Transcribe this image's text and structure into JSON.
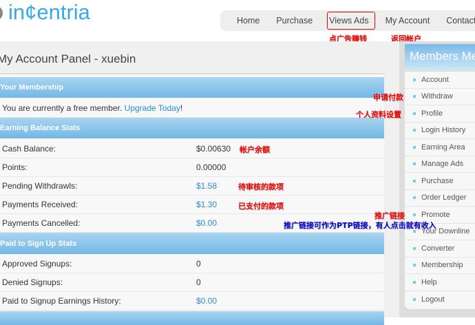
{
  "logo": {
    "text": "in¢entria"
  },
  "nav": {
    "items": [
      "Home",
      "Purchase",
      "Views Ads",
      "My Account",
      "Contact"
    ]
  },
  "annotations": {
    "views_ads": "点广告赚钱",
    "my_account": "返回帐户",
    "withdraw": "申请付款",
    "profile": "个人资料设置",
    "cash": "帐户余额",
    "pending": "待审核的款项",
    "received": "已支付的款项",
    "promote": "推广链接",
    "promote_note": "推广链接可作为PTP链接，有人点击就有收入"
  },
  "page_title": "My Account Panel - xuebin",
  "membership": {
    "header": "Your Membership",
    "text": "You are currently a free member.",
    "upgrade": "Upgrade Today",
    "suffix": "!"
  },
  "earning": {
    "header": "Earning Balance Stats",
    "rows": [
      {
        "label": "Cash Balance:",
        "value": "$0.00630"
      },
      {
        "label": "Points:",
        "value": "0.00000"
      },
      {
        "label": "Pending Withdrawls:",
        "value": "$1.58"
      },
      {
        "label": "Payments Received:",
        "value": "$1.30"
      },
      {
        "label": "Payments Cancelled:",
        "value": "$0.00"
      }
    ]
  },
  "signup": {
    "header": "Paid to Sign Up Stats",
    "rows": [
      {
        "label": "Approved Signups:",
        "value": "0"
      },
      {
        "label": "Denied Signups:",
        "value": "0"
      },
      {
        "label": "Paid to Signup Earnings History:",
        "value": "$0.00"
      }
    ]
  },
  "sidebar": {
    "header": "Members Menu",
    "items": [
      "Account",
      "Withdraw",
      "Profile",
      "Login History",
      "Earning Area",
      "Manage Ads",
      "Purchase",
      "Order Ledger",
      "Promote",
      "Your Downline",
      "Converter",
      "Membership",
      "Help",
      "Logout"
    ]
  }
}
